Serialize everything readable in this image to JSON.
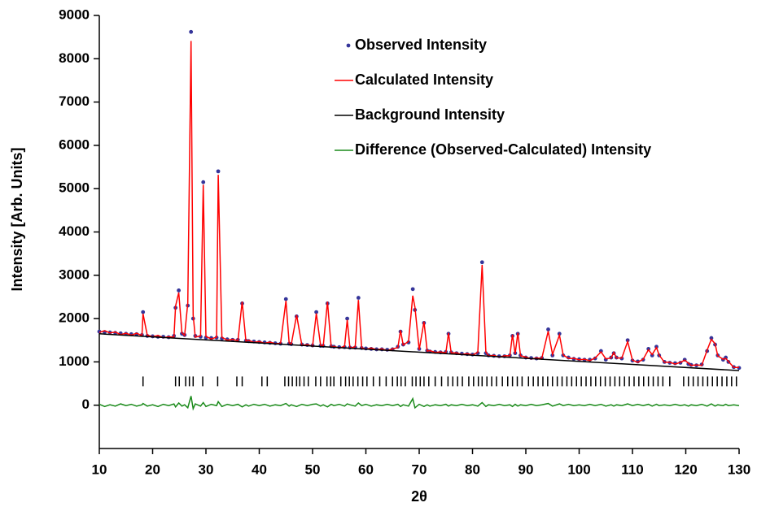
{
  "chart_data": {
    "type": "rietveld",
    "xlabel": "2θ",
    "ylabel": "Intensity [Arb. Units]",
    "xlim": [
      10,
      130
    ],
    "ylim": [
      -1000,
      9000
    ],
    "xticks": [
      10,
      20,
      30,
      40,
      50,
      60,
      70,
      80,
      90,
      100,
      110,
      120,
      130
    ],
    "yticks": [
      0,
      1000,
      2000,
      3000,
      4000,
      5000,
      6000,
      7000,
      8000,
      9000
    ],
    "legend": "upper right",
    "x": [
      10,
      11,
      12,
      13,
      14,
      15,
      16,
      17,
      18,
      18.2,
      19,
      20,
      21,
      22,
      23,
      24,
      24.3,
      24.9,
      25.5,
      26,
      26.6,
      27.2,
      27.6,
      28,
      29,
      29.5,
      30,
      31,
      32,
      32.3,
      33,
      34,
      35,
      36,
      36.8,
      37.5,
      38,
      39,
      40,
      41,
      42,
      43,
      44,
      45,
      45.6,
      46,
      47,
      48,
      49,
      50,
      50.7,
      51.5,
      52,
      52.8,
      53.5,
      54,
      55,
      56,
      56.5,
      57,
      58,
      58.6,
      59.2,
      60,
      61,
      62,
      63,
      64,
      65,
      66,
      66.5,
      67,
      68,
      68.8,
      69.2,
      70,
      70.9,
      71.5,
      72,
      73,
      74,
      75,
      75.5,
      76,
      77,
      78,
      79,
      80,
      81,
      81.8,
      82.5,
      83,
      84,
      85,
      86,
      87,
      87.5,
      88,
      88.5,
      89,
      90,
      91,
      92,
      93,
      94.2,
      95,
      96.3,
      97,
      98,
      99,
      100,
      101,
      102,
      103,
      104.1,
      105,
      106,
      106.5,
      107,
      108,
      109.1,
      110,
      111,
      112,
      113,
      113.7,
      114.5,
      115,
      116,
      117,
      118,
      119,
      119.8,
      120.5,
      121,
      122,
      123,
      124,
      124.8,
      125.5,
      126,
      127,
      127.5,
      128,
      129,
      130
    ],
    "series": [
      {
        "name": "Observed Intensity",
        "color": "#35359a",
        "style": "points",
        "values": [
          1700,
          1690,
          1680,
          1670,
          1660,
          1650,
          1640,
          1640,
          1620,
          2150,
          1600,
          1590,
          1580,
          1580,
          1570,
          1600,
          2250,
          2650,
          1650,
          1620,
          2300,
          8620,
          2000,
          1600,
          1580,
          5150,
          1560,
          1550,
          1560,
          5400,
          1540,
          1520,
          1510,
          1510,
          2350,
          1490,
          1480,
          1470,
          1460,
          1450,
          1440,
          1430,
          1420,
          2450,
          1420,
          1410,
          2050,
          1400,
          1390,
          1380,
          2150,
          1370,
          1370,
          2350,
          1360,
          1350,
          1340,
          1340,
          2000,
          1330,
          1330,
          2480,
          1320,
          1310,
          1300,
          1290,
          1290,
          1280,
          1290,
          1350,
          1700,
          1400,
          1450,
          2680,
          2200,
          1300,
          1900,
          1260,
          1240,
          1230,
          1220,
          1230,
          1650,
          1220,
          1200,
          1190,
          1180,
          1170,
          1200,
          3300,
          1200,
          1150,
          1140,
          1130,
          1130,
          1150,
          1600,
          1200,
          1650,
          1150,
          1100,
          1090,
          1080,
          1090,
          1750,
          1150,
          1650,
          1150,
          1100,
          1070,
          1060,
          1050,
          1050,
          1080,
          1250,
          1050,
          1100,
          1200,
          1100,
          1080,
          1500,
          1030,
          1010,
          1050,
          1300,
          1150,
          1350,
          1150,
          1000,
          980,
          970,
          980,
          1050,
          950,
          930,
          920,
          940,
          1250,
          1550,
          1400,
          1150,
          1050,
          1100,
          1000,
          880,
          860
        ]
      },
      {
        "name": "Calculated Intensity",
        "color": "#ff0000",
        "style": "line",
        "values": [
          1680,
          1720,
          1670,
          1690,
          1630,
          1660,
          1620,
          1660,
          1610,
          2110,
          1620,
          1580,
          1610,
          1560,
          1580,
          1570,
          2290,
          2600,
          1670,
          1610,
          2360,
          8410,
          2080,
          1570,
          1600,
          5090,
          1590,
          1530,
          1570,
          5320,
          1570,
          1500,
          1520,
          1490,
          2390,
          1480,
          1500,
          1450,
          1470,
          1430,
          1460,
          1420,
          1430,
          2410,
          1440,
          1400,
          2080,
          1380,
          1400,
          1360,
          2120,
          1390,
          1360,
          2390,
          1340,
          1360,
          1320,
          1360,
          1970,
          1320,
          1350,
          2430,
          1330,
          1290,
          1320,
          1280,
          1300,
          1260,
          1300,
          1330,
          1730,
          1390,
          1470,
          2530,
          2260,
          1280,
          1930,
          1250,
          1260,
          1220,
          1230,
          1210,
          1670,
          1210,
          1210,
          1170,
          1190,
          1160,
          1220,
          3240,
          1230,
          1140,
          1150,
          1110,
          1140,
          1140,
          1630,
          1180,
          1670,
          1140,
          1110,
          1070,
          1090,
          1080,
          1710,
          1170,
          1620,
          1160,
          1080,
          1080,
          1050,
          1060,
          1030,
          1090,
          1230,
          1070,
          1090,
          1220,
          1090,
          1090,
          1470,
          1040,
          990,
          1060,
          1280,
          1170,
          1330,
          1160,
          990,
          990,
          950,
          990,
          1040,
          970,
          920,
          930,
          920,
          1270,
          1520,
          1420,
          1140,
          1060,
          1080,
          1010,
          870,
          870
        ]
      },
      {
        "name": "Background Intensity",
        "color": "#000000",
        "style": "line",
        "x": [
          10,
          130
        ],
        "values": [
          1650,
          800
        ]
      },
      {
        "name": "Difference (Observed-Calculated) Intensity",
        "color": "#1a8a1a",
        "style": "line",
        "values": [
          20,
          -30,
          10,
          -20,
          30,
          -10,
          20,
          -20,
          10,
          40,
          -20,
          10,
          -30,
          20,
          -10,
          30,
          -40,
          50,
          -20,
          10,
          -60,
          210,
          -80,
          30,
          -20,
          60,
          -30,
          20,
          -10,
          80,
          -30,
          20,
          -10,
          20,
          -40,
          10,
          -20,
          20,
          -10,
          20,
          -20,
          10,
          -10,
          40,
          -20,
          10,
          -30,
          20,
          -10,
          20,
          30,
          -20,
          10,
          -40,
          20,
          -10,
          20,
          -20,
          30,
          10,
          -20,
          50,
          -10,
          20,
          -20,
          10,
          -10,
          20,
          -10,
          20,
          -30,
          10,
          -20,
          150,
          -60,
          20,
          -30,
          10,
          -20,
          10,
          -10,
          20,
          -20,
          10,
          -10,
          20,
          -10,
          10,
          -20,
          60,
          -30,
          10,
          -10,
          20,
          -10,
          10,
          -30,
          20,
          -20,
          10,
          -10,
          20,
          -10,
          10,
          40,
          -20,
          30,
          -10,
          20,
          -10,
          10,
          -10,
          20,
          -10,
          20,
          -20,
          10,
          -20,
          10,
          -10,
          30,
          -10,
          20,
          -10,
          20,
          -20,
          20,
          -10,
          10,
          -10,
          20,
          -10,
          10,
          -20,
          10,
          -10,
          20,
          -20,
          30,
          -20,
          10,
          -10,
          20,
          -10,
          10,
          -10
        ]
      }
    ],
    "bragg_level": 550,
    "bragg_positions": [
      18.2,
      24.3,
      25,
      26.2,
      26.9,
      27.6,
      29.4,
      32.2,
      35.8,
      36.8,
      40.5,
      41.5,
      44.8,
      45.5,
      46.2,
      47,
      47.6,
      48.4,
      49.2,
      50.6,
      51.5,
      52.7,
      53.4,
      54,
      55.3,
      56.2,
      56.9,
      57.6,
      58.5,
      59.4,
      60.2,
      61.4,
      62.6,
      63.8,
      65,
      65.9,
      66.6,
      67.4,
      68.7,
      69.4,
      70.2,
      70.9,
      71.8,
      73,
      74.2,
      75.4,
      76.3,
      77.2,
      78.1,
      79.3,
      80.2,
      81.1,
      81.8,
      82.7,
      83.6,
      84.5,
      85.6,
      86.6,
      87.5,
      88.4,
      89.3,
      90.5,
      91.4,
      92.3,
      93.2,
      94.1,
      95,
      95.9,
      96.8,
      97.7,
      98.6,
      99.5,
      100.4,
      101.3,
      102.2,
      103.1,
      104,
      104.9,
      105.8,
      106.7,
      107.6,
      108.5,
      109.4,
      110.3,
      111.2,
      112.1,
      113,
      113.9,
      114.8,
      115.7,
      117,
      119.6,
      120.5,
      121.4,
      122.3,
      123.2,
      124.1,
      125,
      125.9,
      126.8,
      127.7,
      128.6,
      129.5
    ]
  }
}
